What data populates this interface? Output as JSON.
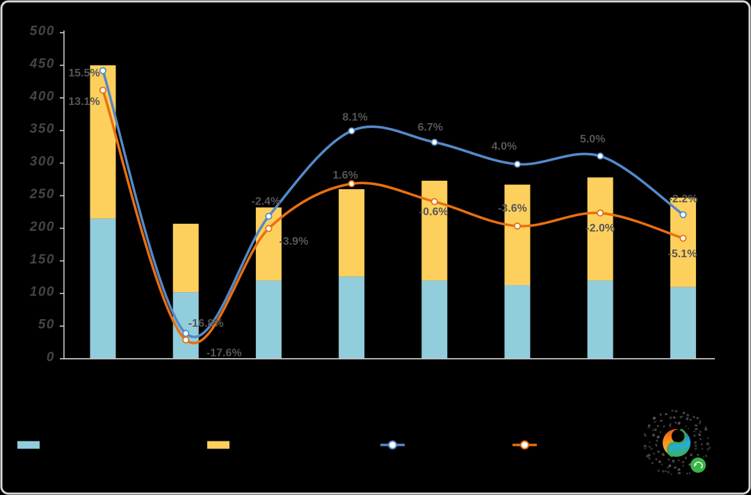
{
  "figure": {
    "background": "#000000",
    "border_color": "#d8d8d8"
  },
  "chart_data": {
    "type": "combo-stacked-bar-line",
    "categories": [
      "",
      "",
      "",
      "",
      "",
      "",
      "",
      ""
    ],
    "title": "",
    "xlabel": "",
    "ylabel": "",
    "grid": "off",
    "legend_position": "bottom",
    "left_axis": {
      "min": 0,
      "max": 500,
      "step": 50,
      "ticks": [
        "0",
        "50",
        "100",
        "150",
        "200",
        "250",
        "300",
        "350",
        "400",
        "450",
        "500"
      ]
    },
    "right_axis": {
      "min": -20,
      "max": 20,
      "labels_visible": false
    },
    "bar_totals": [
      450,
      207,
      232,
      260,
      273,
      267,
      278,
      247
    ],
    "series": [
      {
        "name": "stacked-bar-lower",
        "type": "bar",
        "stack": "total",
        "color": "#92CDDC",
        "values": [
          215,
          102,
          120,
          126,
          120,
          113,
          120,
          110
        ]
      },
      {
        "name": "stacked-bar-upper",
        "type": "bar",
        "stack": "total",
        "color": "#FDD05E",
        "values": [
          235,
          105,
          112,
          134,
          153,
          154,
          158,
          137
        ]
      },
      {
        "name": "line-1",
        "type": "line",
        "axis": "right",
        "color": "#5589C9",
        "values_pct": [
          15.5,
          -16.8,
          -2.4,
          8.1,
          6.7,
          4.0,
          5.0,
          -2.2
        ],
        "labels": [
          "15.5%",
          "-16.8%",
          "-2.4%",
          "8.1%",
          "6.7%",
          "4.0%",
          "5.0%",
          "-2.2%"
        ]
      },
      {
        "name": "line-2",
        "type": "line",
        "axis": "right",
        "color": "#E8700F",
        "values_pct": [
          13.1,
          -17.6,
          -3.9,
          1.6,
          -0.6,
          -3.6,
          -2.0,
          -5.1
        ],
        "labels": [
          "13.1%",
          "-17.6%",
          "-3.9%",
          "1.6%",
          "-0.6%",
          "-3.6%",
          "-2.0%",
          "-5.1%"
        ]
      }
    ],
    "label_color": "#565656",
    "axis_label_color": "#454545",
    "axis_line_color": "#c9c9c9",
    "marker_fill": "#ffffff",
    "layout_hints": {
      "label_offsets": {
        "line-1": [
          [
            -27,
            4
          ],
          [
            29,
            -14
          ],
          [
            -4,
            -21
          ],
          [
            5,
            -19
          ],
          [
            -6,
            -21
          ],
          [
            -19,
            -25
          ],
          [
            -11,
            -24
          ],
          [
            0,
            -22
          ]
        ],
        "line-2": [
          [
            -27,
            17
          ],
          [
            55,
            19
          ],
          [
            36,
            19
          ],
          [
            -9,
            -12
          ],
          [
            -1,
            15
          ],
          [
            -7,
            -25
          ],
          [
            0,
            22
          ],
          [
            -1,
            23
          ]
        ]
      }
    }
  },
  "legend": {
    "items": [
      {
        "swatch": "rect",
        "color": "#92CDDC"
      },
      {
        "swatch": "rect",
        "color": "#FDD05E"
      },
      {
        "swatch": "line-marker",
        "color": "#5589C9"
      },
      {
        "swatch": "line-marker",
        "color": "#E8700F"
      }
    ]
  },
  "logo": {
    "speckle_colors": [
      "#2e2e2e",
      "#3a3a3a",
      "#474747",
      "#545454"
    ],
    "swirl_left_gradient": [
      "#E8480D",
      "#F6921E",
      "#FBB03B"
    ],
    "swirl_right_gradient": [
      "#2E5FA3",
      "#27AAE1",
      "#39B54A"
    ],
    "green_stripe": "#3FAE49",
    "badge_color": "#3BB54A",
    "badge_mark_color": "#eaf7ea"
  }
}
